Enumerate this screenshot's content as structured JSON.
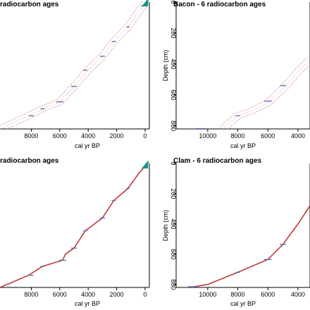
{
  "chart_data": [
    {
      "type": "line",
      "panel": "top-left",
      "title": "radiocarbon ages",
      "xlabel": "cal yr BP",
      "ylabel": "",
      "x_reversed": true,
      "y_reversed": true,
      "xlim": [
        10200,
        -300
      ],
      "ylim": [
        0,
        820
      ],
      "xticks": [
        8000,
        6000,
        4000,
        2000,
        0
      ],
      "yticks": [],
      "model_style": "dotted-envelope",
      "model": {
        "x": [
          10200,
          8200,
          7200,
          6000,
          5000,
          4000,
          3000,
          2200,
          1200,
          400,
          150,
          -50
        ],
        "y": [
          820,
          735,
          690,
          645,
          545,
          440,
          350,
          255,
          160,
          55,
          25,
          5
        ]
      },
      "dates": {
        "x": [
          8000,
          7200,
          6000,
          5000,
          4200,
          3000,
          2200,
          1200,
          200
        ],
        "y": [
          735,
          690,
          645,
          545,
          440,
          350,
          255,
          160,
          25
        ],
        "err": [
          180,
          150,
          250,
          200,
          150,
          180,
          150,
          120,
          100
        ]
      }
    },
    {
      "type": "line",
      "panel": "top-right",
      "title": "Bacon - 6 radiocarbon ages",
      "xlabel": "cal yr BP",
      "ylabel": "Depth (cm)",
      "x_reversed": true,
      "y_reversed": true,
      "xlim": [
        12100,
        3200
      ],
      "ylim": [
        0,
        820
      ],
      "xticks": [
        10000,
        8000,
        6000,
        4000
      ],
      "yticks": [
        0,
        200,
        400,
        600,
        800
      ],
      "model_style": "dotted-envelope",
      "model": {
        "x": [
          9000,
          8000,
          7000,
          6000,
          5000,
          4000,
          3200
        ],
        "y": [
          820,
          735,
          700,
          650,
          560,
          450,
          370
        ]
      },
      "dates": {
        "x": [
          10500,
          8000,
          6000,
          5000
        ],
        "y": [
          818,
          735,
          640,
          540
        ],
        "err": [
          300,
          150,
          250,
          200
        ]
      }
    },
    {
      "type": "line",
      "panel": "bottom-left",
      "title": "radiocarbon ages",
      "xlabel": "cal yr BP",
      "ylabel": "",
      "x_reversed": true,
      "y_reversed": true,
      "xlim": [
        10200,
        -300
      ],
      "ylim": [
        0,
        820
      ],
      "xticks": [
        8000,
        6000,
        4000,
        2000,
        0
      ],
      "yticks": [],
      "model_style": "solid-line",
      "model": {
        "x": [
          10200,
          8200,
          7200,
          5800,
          5600,
          5000,
          4200,
          3000,
          2200,
          1200,
          400,
          100,
          -50
        ],
        "y": [
          820,
          740,
          680,
          640,
          600,
          560,
          445,
          360,
          245,
          165,
          60,
          30,
          10
        ]
      },
      "dates": {
        "x": [
          8000,
          7200,
          5800,
          5000,
          4200,
          3000,
          2200,
          1200,
          100
        ],
        "y": [
          740,
          680,
          640,
          560,
          445,
          360,
          245,
          165,
          30
        ],
        "err": [
          150,
          150,
          250,
          200,
          150,
          180,
          150,
          120,
          100
        ]
      }
    },
    {
      "type": "line",
      "panel": "bottom-right",
      "title": "Clam - 6 radiocarbon ages",
      "xlabel": "cal yr BP",
      "ylabel": "Depth (cm)",
      "x_reversed": true,
      "y_reversed": true,
      "xlim": [
        12100,
        3200
      ],
      "ylim": [
        0,
        820
      ],
      "xticks": [
        10000,
        8000,
        6000,
        4000
      ],
      "yticks": [
        0,
        200,
        400,
        600,
        800
      ],
      "model_style": "solid-line",
      "model": {
        "x": [
          11200,
          10000,
          8000,
          6000,
          5000,
          4000,
          3200
        ],
        "y": [
          820,
          800,
          720,
          635,
          535,
          400,
          280
        ]
      },
      "dates": {
        "x": [
          11000,
          8000,
          6000,
          5000
        ],
        "y": [
          815,
          720,
          635,
          535
        ],
        "err": [
          300,
          150,
          250,
          200
        ]
      }
    }
  ],
  "colors": {
    "axis": "#000000",
    "model_line": "#c0393b",
    "envelope": "#e07a7a",
    "date_mark": "#5b6fb3",
    "surface_mark": "#1f8f8a"
  },
  "icons": {
    "surface_marker": "teal-wedge-icon"
  }
}
